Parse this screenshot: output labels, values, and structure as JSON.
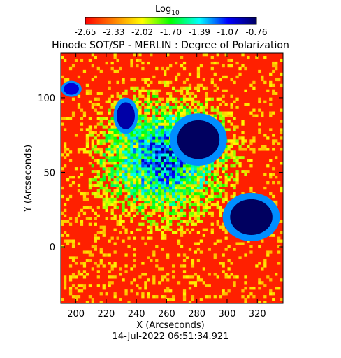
{
  "colorbar": {
    "label": "Log",
    "label_subscript": "10",
    "ticks": [
      "-2.65",
      "-2.33",
      "-2.02",
      "-1.70",
      "-1.39",
      "-1.07",
      "-0.76"
    ],
    "range": [
      -2.65,
      -0.76
    ],
    "colormap": [
      "#ff0000",
      "#ff8000",
      "#ffff00",
      "#00ff00",
      "#00ffff",
      "#0000ff",
      "#000060"
    ]
  },
  "chart_data": {
    "type": "heatmap",
    "title": "Hinode SOT/SP - MERLIN : Degree of Polarization",
    "xlabel": "X (Arcseconds)",
    "ylabel": "Y (Arcseconds)",
    "xlim": [
      190,
      337
    ],
    "ylim": [
      -38,
      130
    ],
    "xticks": [
      200,
      220,
      240,
      260,
      280,
      300,
      320
    ],
    "yticks": [
      0,
      50,
      100
    ],
    "features": [
      {
        "type": "umbra",
        "x": 281,
        "y": 72,
        "rx": 14,
        "ry": 13,
        "value": -0.76
      },
      {
        "type": "umbra",
        "x": 316,
        "y": 20,
        "rx": 14,
        "ry": 12,
        "value": -0.76
      },
      {
        "type": "pore",
        "x": 233,
        "y": 88,
        "rx": 6,
        "ry": 9,
        "value": -0.9
      },
      {
        "type": "pore",
        "x": 197,
        "y": 106,
        "rx": 5,
        "ry": 4,
        "value": -1.0
      },
      {
        "type": "plage",
        "x": 258,
        "y": 60,
        "rx": 60,
        "ry": 55,
        "value": -1.6
      }
    ],
    "timestamp": "14-Jul-2022 06:51:34.921"
  }
}
